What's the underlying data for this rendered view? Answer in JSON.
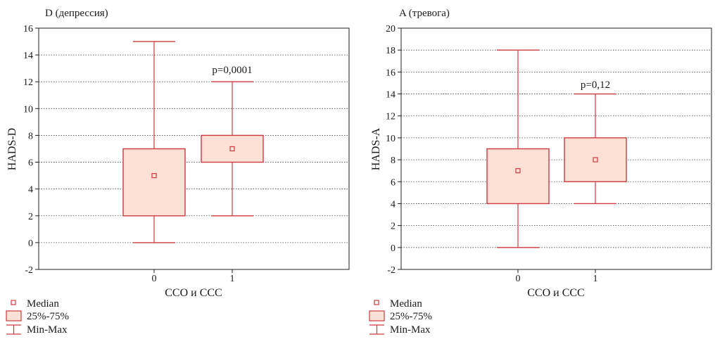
{
  "colors": {
    "box_stroke": "#d0393e",
    "box_fill": "#fde0d6",
    "grid": "#444444",
    "frame": "#222222"
  },
  "chart_data": [
    {
      "type": "box",
      "title": "D (депрессия)",
      "xlabel": "ССО и ССС",
      "ylabel": "HADS-D",
      "categories": [
        "0",
        "1"
      ],
      "ylim": [
        -2,
        16
      ],
      "yticks": [
        "-2",
        "0",
        "2",
        "4",
        "6",
        "8",
        "10",
        "12",
        "14",
        "16"
      ],
      "grid": true,
      "annotation": "p=0,0001",
      "boxes": [
        {
          "category": "0",
          "min": 0,
          "q1": 2,
          "median": 5,
          "q3": 7,
          "max": 15
        },
        {
          "category": "1",
          "min": 2,
          "q1": 6,
          "median": 7,
          "q3": 8,
          "max": 12
        }
      ],
      "legend": [
        "Median",
        "25%-75%",
        "Min-Max"
      ]
    },
    {
      "type": "box",
      "title": "A (тревога)",
      "xlabel": "ССО и ССС",
      "ylabel": "HADS-A",
      "categories": [
        "0",
        "1"
      ],
      "ylim": [
        -2,
        20
      ],
      "yticks": [
        "-2",
        "0",
        "2",
        "4",
        "6",
        "8",
        "10",
        "12",
        "14",
        "16",
        "18",
        "20"
      ],
      "grid": true,
      "annotation": "p=0,12",
      "boxes": [
        {
          "category": "0",
          "min": 0,
          "q1": 4,
          "median": 7,
          "q3": 9,
          "max": 18
        },
        {
          "category": "1",
          "min": 4,
          "q1": 6,
          "median": 8,
          "q3": 10,
          "max": 14
        }
      ],
      "legend": [
        "Median",
        "25%-75%",
        "Min-Max"
      ]
    }
  ]
}
